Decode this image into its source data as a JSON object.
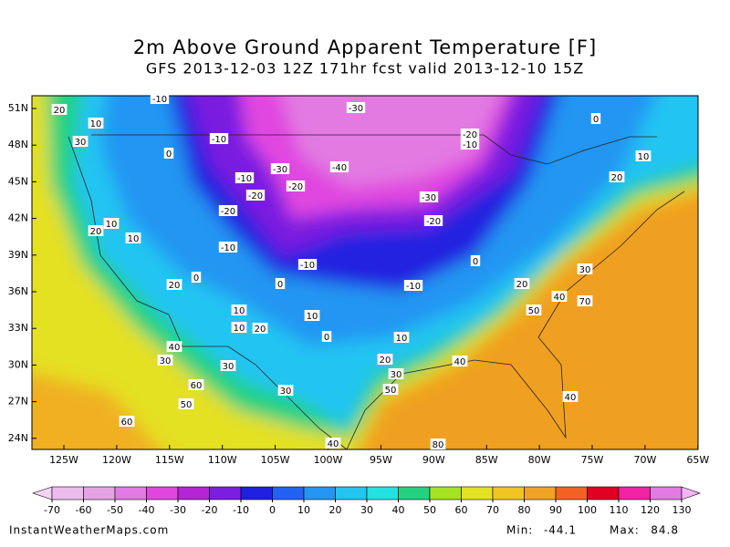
{
  "header": {
    "title": "2m Above Ground Apparent Temperature [F]",
    "subtitle": "GFS 2013-12-03 12Z 171hr fcst valid 2013-12-10 15Z"
  },
  "map": {
    "lat_labels": [
      "51N",
      "48N",
      "45N",
      "42N",
      "39N",
      "36N",
      "33N",
      "30N",
      "27N",
      "24N"
    ],
    "lon_labels": [
      "125W",
      "120W",
      "115W",
      "110W",
      "105W",
      "100W",
      "95W",
      "90W",
      "85W",
      "80W",
      "75W",
      "70W",
      "65W"
    ],
    "contour_labels": [
      -10,
      20,
      -30,
      0,
      10,
      30,
      -10,
      -20,
      -10,
      0,
      10,
      -30,
      -40,
      -10,
      -20,
      20,
      -20,
      -30,
      -20,
      -20,
      10,
      20,
      10,
      -10,
      0,
      -10,
      30,
      0,
      0,
      20,
      -10,
      20,
      40,
      70,
      10,
      50,
      10,
      10,
      20,
      0,
      10,
      40,
      30,
      20,
      40,
      30,
      30,
      60,
      50,
      30,
      40,
      50,
      60,
      40,
      80
    ]
  },
  "colorbar": {
    "ticks": [
      -70,
      -60,
      -50,
      -40,
      -30,
      -20,
      -10,
      0,
      10,
      20,
      30,
      40,
      50,
      60,
      70,
      80,
      90,
      100,
      110,
      120,
      130
    ],
    "colors": [
      "#f4d4f4",
      "#ecbcec",
      "#e4a4e4",
      "#e27ae2",
      "#e046e0",
      "#b424d4",
      "#7a1ee0",
      "#2020e0",
      "#2262f2",
      "#2296f2",
      "#22c4f2",
      "#22e2e2",
      "#22d280",
      "#a4e222",
      "#e2e222",
      "#f2c422",
      "#f2a222",
      "#f26222",
      "#e00022",
      "#f222a4",
      "#e27ae2",
      "#f4b4f4"
    ]
  },
  "footer": {
    "source": "InstantWeatherMaps.com",
    "min_label": "Min:",
    "min": -44.1,
    "max_label": "Max:",
    "max": 84.8
  }
}
